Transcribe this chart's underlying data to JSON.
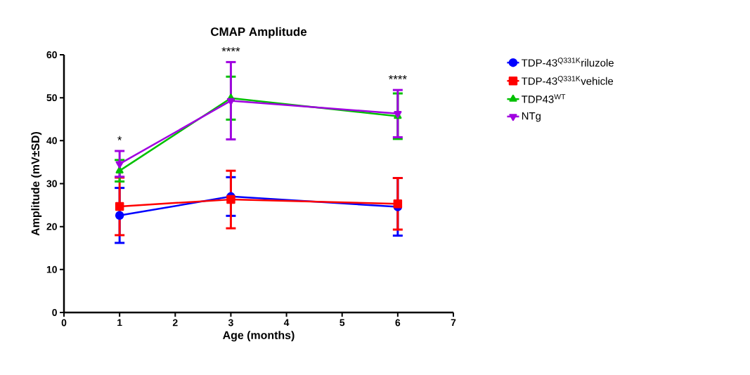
{
  "chart_data": {
    "type": "line",
    "title": "CMAP Amplitude",
    "xlabel": "Age (months)",
    "ylabel": "Amplitude (mV±SD)",
    "x": [
      1,
      3,
      6
    ],
    "xlim": [
      0,
      7
    ],
    "xticks": [
      0,
      1,
      2,
      3,
      4,
      5,
      6,
      7
    ],
    "ylim": [
      0,
      60
    ],
    "yticks": [
      0,
      10,
      20,
      30,
      40,
      50,
      60
    ],
    "legend": "right",
    "grid": false,
    "series": [
      {
        "name": "TDP-43$^{Q331K}$riluzole",
        "color": "#0000ff",
        "marker": "circle",
        "values": [
          22.6,
          27.0,
          24.6
        ],
        "errors": [
          6.4,
          4.5,
          6.7
        ]
      },
      {
        "name": "TDP-43$^{Q331K}$vehicle",
        "color": "#ff0000",
        "marker": "square",
        "values": [
          24.7,
          26.3,
          25.3
        ],
        "errors": [
          6.7,
          6.7,
          6.0
        ]
      },
      {
        "name": "TDP43$^{WT}$",
        "color": "#00c000",
        "marker": "triangle",
        "values": [
          33.0,
          49.9,
          45.7
        ],
        "errors": [
          2.5,
          5.0,
          5.3
        ]
      },
      {
        "name": "NTg",
        "color": "#a000e0",
        "marker": "triangle down",
        "values": [
          34.6,
          49.3,
          46.3
        ],
        "errors": [
          3.0,
          9.0,
          5.5
        ]
      }
    ],
    "annotations": [
      "*",
      "****",
      "****"
    ]
  }
}
